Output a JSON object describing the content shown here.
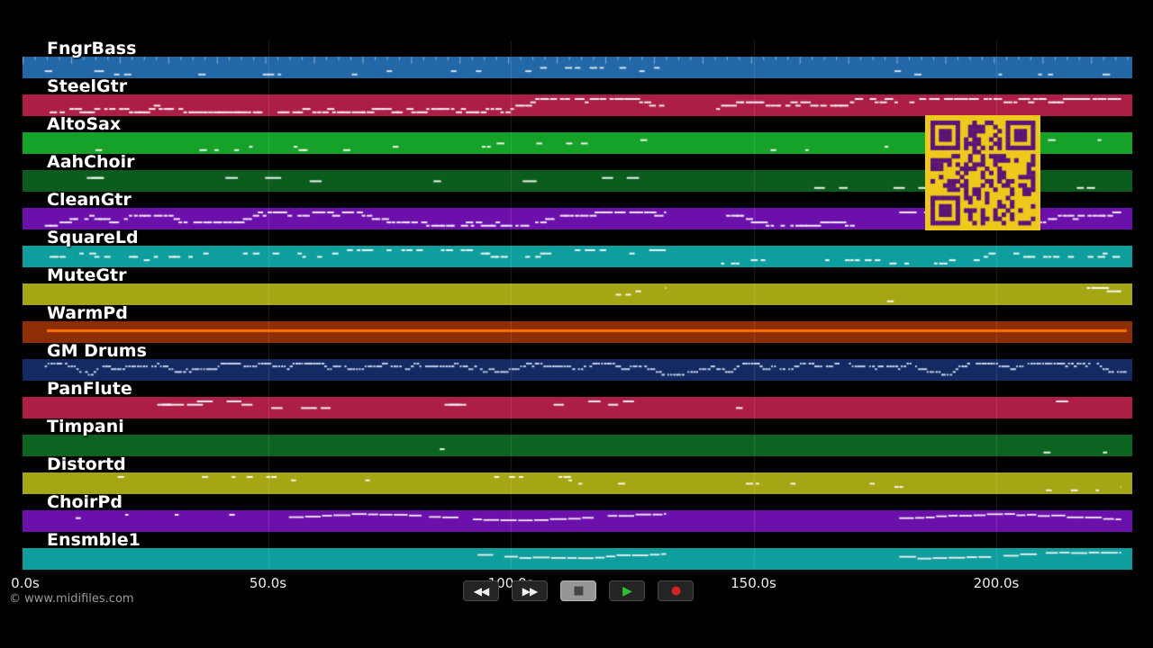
{
  "watermark": "© www.midifiles.com",
  "time_axis": {
    "unit": "seconds",
    "ticks": [
      {
        "label": "0.0s",
        "t": 0
      },
      {
        "label": "50.0s",
        "t": 50
      },
      {
        "label": "100.0s",
        "t": 100
      },
      {
        "label": "150.0s",
        "t": 150
      },
      {
        "label": "200.0s",
        "t": 200
      }
    ]
  },
  "transport": {
    "buttons": [
      {
        "name": "rewind",
        "glyph": "◀◀"
      },
      {
        "name": "fast-forward",
        "glyph": "▶▶"
      },
      {
        "name": "stop",
        "glyph": "■"
      },
      {
        "name": "play",
        "glyph": "▶"
      },
      {
        "name": "record",
        "glyph": "●"
      }
    ]
  },
  "tracks": [
    {
      "name": "FngrBass",
      "color": "#2268a6",
      "note_color": "#d2e2f0",
      "segments": [
        {
          "from": 0.02,
          "to": 0.58,
          "density": 0.12
        },
        {
          "from": 0.625,
          "to": 0.99,
          "density": 0.1
        }
      ]
    },
    {
      "name": "SteelGtr",
      "color": "#ac1e46",
      "note_color": "#f4f0f1",
      "segments": [
        {
          "from": 0.02,
          "to": 0.58,
          "density": 0.92
        },
        {
          "from": 0.625,
          "to": 0.99,
          "density": 0.88
        }
      ]
    },
    {
      "name": "AltoSax",
      "color": "#16a228",
      "note_color": "#f0f4ee",
      "segments": [
        {
          "from": 0.03,
          "to": 0.58,
          "density": 0.16
        },
        {
          "from": 0.625,
          "to": 0.99,
          "density": 0.14
        }
      ]
    },
    {
      "name": "AahChoir",
      "color": "#0b5c1d",
      "note_color": "#eef4ee",
      "size": "long",
      "segments": [
        {
          "from": 0.04,
          "to": 0.58,
          "density": 0.1
        },
        {
          "from": 0.7,
          "to": 0.99,
          "density": 0.1
        }
      ]
    },
    {
      "name": "CleanGtr",
      "color": "#6c10ac",
      "note_color": "#f2ecf6",
      "segments": [
        {
          "from": 0.02,
          "to": 0.58,
          "density": 0.85
        },
        {
          "from": 0.625,
          "to": 0.75,
          "density": 0.75
        },
        {
          "from": 0.79,
          "to": 0.99,
          "density": 0.8
        }
      ]
    },
    {
      "name": "SquareLd",
      "color": "#0f9e9e",
      "note_color": "#f0f6f6",
      "segments": [
        {
          "from": 0.02,
          "to": 0.58,
          "density": 0.4
        },
        {
          "from": 0.625,
          "to": 0.99,
          "density": 0.35
        }
      ]
    },
    {
      "name": "MuteGtr",
      "color": "#a6a614",
      "note_color": "#f6f6ec",
      "segments": [
        {
          "from": 0.53,
          "to": 0.58,
          "density": 0.3
        },
        {
          "from": 0.77,
          "to": 0.8,
          "density": 0.2
        },
        {
          "from": 0.95,
          "to": 0.995,
          "density": 0.4
        }
      ]
    },
    {
      "name": "WarmPd",
      "color": "#8e2e06",
      "note_color": "#ff7300",
      "segments": [
        {
          "from": 0.022,
          "to": 0.995,
          "style": "sustain"
        }
      ]
    },
    {
      "name": "GM Drums",
      "color": "#132a62",
      "note_color": "#c8d4ea",
      "size": "tiny",
      "segments": [
        {
          "from": 0.02,
          "to": 0.995,
          "density": 0.9
        }
      ]
    },
    {
      "name": "PanFlute",
      "color": "#ac1e46",
      "note_color": "#f4f0f1",
      "size": "long",
      "segments": [
        {
          "from": 0.05,
          "to": 0.58,
          "density": 0.1
        },
        {
          "from": 0.625,
          "to": 0.75,
          "density": 0.08
        },
        {
          "from": 0.9,
          "to": 0.99,
          "density": 0.15
        }
      ]
    },
    {
      "name": "Timpani",
      "color": "#0c6420",
      "note_color": "#eef4ee",
      "segments": [
        {
          "from": 0.3,
          "to": 0.44,
          "density": 0.07
        },
        {
          "from": 0.55,
          "to": 0.58,
          "density": 0.06
        },
        {
          "from": 0.92,
          "to": 0.99,
          "density": 0.1
        }
      ]
    },
    {
      "name": "Distortd",
      "color": "#a6a614",
      "note_color": "#f6f6ec",
      "segments": [
        {
          "from": 0.05,
          "to": 0.58,
          "density": 0.18
        },
        {
          "from": 0.625,
          "to": 0.82,
          "density": 0.12
        },
        {
          "from": 0.9,
          "to": 0.99,
          "density": 0.18
        }
      ]
    },
    {
      "name": "ChoirPd",
      "color": "#6c10ac",
      "note_color": "#f2f2f2",
      "segments": [
        {
          "from": 0.03,
          "to": 0.22,
          "density": 0.12
        },
        {
          "from": 0.24,
          "to": 0.58,
          "style": "line"
        },
        {
          "from": 0.79,
          "to": 0.99,
          "style": "line"
        }
      ]
    },
    {
      "name": "Ensmble1",
      "color": "#0f9e9e",
      "note_color": "#f2f2f2",
      "segments": [
        {
          "from": 0.41,
          "to": 0.58,
          "style": "line"
        },
        {
          "from": 0.79,
          "to": 0.99,
          "style": "line"
        }
      ]
    }
  ],
  "qr": {
    "background": "#eec91c",
    "modules": "#5a1478"
  }
}
